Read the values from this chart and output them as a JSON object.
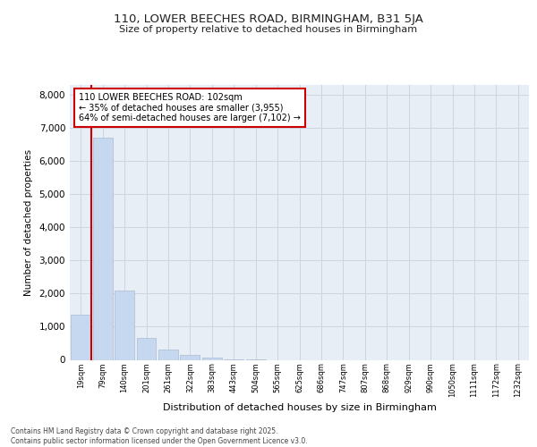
{
  "title_line1": "110, LOWER BEECHES ROAD, BIRMINGHAM, B31 5JA",
  "title_line2": "Size of property relative to detached houses in Birmingham",
  "xlabel": "Distribution of detached houses by size in Birmingham",
  "ylabel": "Number of detached properties",
  "categories": [
    "19sqm",
    "79sqm",
    "140sqm",
    "201sqm",
    "261sqm",
    "322sqm",
    "383sqm",
    "443sqm",
    "504sqm",
    "565sqm",
    "625sqm",
    "686sqm",
    "747sqm",
    "807sqm",
    "868sqm",
    "929sqm",
    "990sqm",
    "1050sqm",
    "1111sqm",
    "1172sqm",
    "1232sqm"
  ],
  "values": [
    1350,
    6700,
    2100,
    650,
    320,
    160,
    70,
    20,
    10,
    0,
    0,
    0,
    0,
    0,
    0,
    0,
    0,
    0,
    0,
    0,
    0
  ],
  "bar_color": "#c5d8f0",
  "bar_edge_color": "#c5d8f0",
  "grid_color": "#ccd5e0",
  "bg_color": "#e8eef6",
  "red_line_color": "#cc0000",
  "red_line_x": 1.5,
  "annotation_text": "110 LOWER BEECHES ROAD: 102sqm\n← 35% of detached houses are smaller (3,955)\n64% of semi-detached houses are larger (7,102) →",
  "annotation_box_facecolor": "#ffffff",
  "annotation_border_color": "#cc0000",
  "ylim": [
    0,
    8300
  ],
  "yticks": [
    0,
    1000,
    2000,
    3000,
    4000,
    5000,
    6000,
    7000,
    8000
  ],
  "footnote_line1": "Contains HM Land Registry data © Crown copyright and database right 2025.",
  "footnote_line2": "Contains public sector information licensed under the Open Government Licence v3.0."
}
